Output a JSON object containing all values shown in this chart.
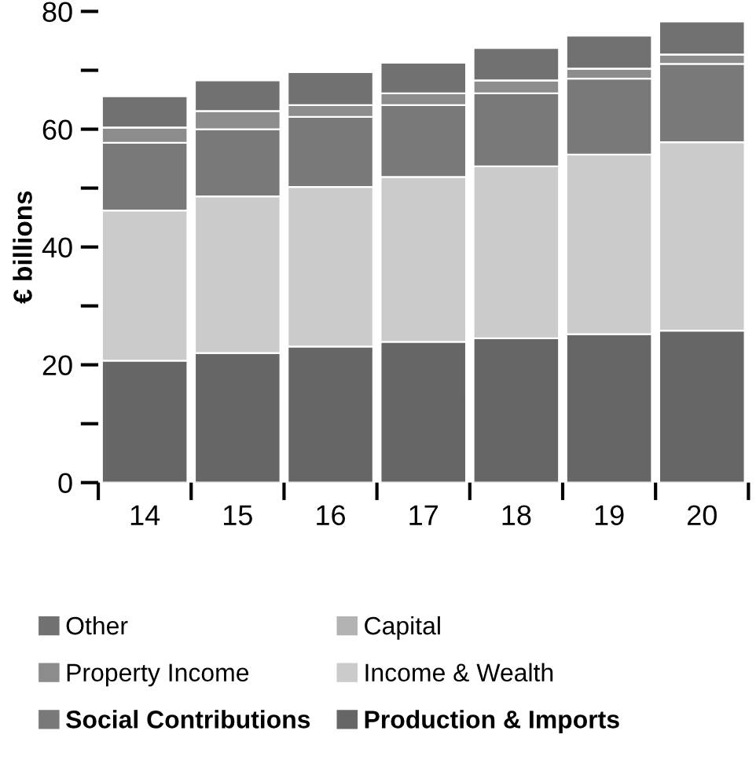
{
  "chart_data": {
    "type": "bar",
    "stacked": true,
    "ylabel": "€ billions",
    "categories": [
      "14",
      "15",
      "16",
      "17",
      "18",
      "19",
      "20"
    ],
    "series": [
      {
        "name": "Production & Imports",
        "color": "#666666",
        "values": [
          20.7,
          22.0,
          23.1,
          23.9,
          24.5,
          25.2,
          25.8
        ]
      },
      {
        "name": "Income & Wealth",
        "color": "#cbcbcb",
        "values": [
          25.5,
          26.6,
          27.1,
          28.0,
          29.2,
          30.5,
          32.0
        ]
      },
      {
        "name": "Social Contributions",
        "color": "#797979",
        "values": [
          11.5,
          11.4,
          11.9,
          12.2,
          12.4,
          12.9,
          13.3
        ]
      },
      {
        "name": "Property Income",
        "color": "#8c8c8c",
        "values": [
          2.6,
          3.1,
          2.0,
          2.0,
          2.2,
          1.7,
          1.6
        ]
      },
      {
        "name": "Capital",
        "color": "#b3b3b3",
        "values": [
          null,
          null,
          null,
          null,
          null,
          null,
          null
        ]
      },
      {
        "name": "Other",
        "color": "#717171",
        "values": [
          5.3,
          5.2,
          5.6,
          5.2,
          5.5,
          5.6,
          5.6
        ]
      }
    ],
    "ylim": [
      0,
      80
    ],
    "yticks": [
      0,
      {
        "value": 10,
        "label": null
      },
      20,
      {
        "value": 30,
        "label": null
      },
      40,
      {
        "value": 50,
        "label": null
      },
      60,
      {
        "value": 70,
        "label": null
      },
      80
    ],
    "grid": false,
    "legend": "bottom"
  }
}
